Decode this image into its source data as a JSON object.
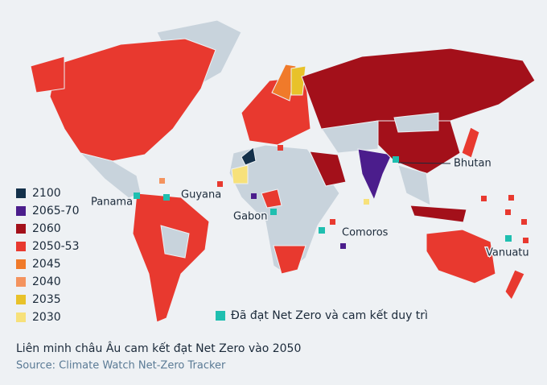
{
  "legend": [
    {
      "label": "2100",
      "color": "#13304a"
    },
    {
      "label": "2065-70",
      "color": "#4b1d8c"
    },
    {
      "label": "2060",
      "color": "#a3101a"
    },
    {
      "label": "2050-53",
      "color": "#e8392f"
    },
    {
      "label": "2045",
      "color": "#f07a2a"
    },
    {
      "label": "2040",
      "color": "#f4935e"
    },
    {
      "label": "2035",
      "color": "#e8c22a"
    },
    {
      "label": "2030",
      "color": "#f7e17a"
    }
  ],
  "achieved": {
    "label": "Đã đạt Net Zero và cam kết duy trì",
    "color": "#1fbfb0"
  },
  "country_labels": [
    "Bhutan",
    "Panama",
    "Guyana",
    "Gabon",
    "Comoros",
    "Vanuatu"
  ],
  "footnote": "Liên minh châu Âu cam kết đạt Net Zero vào 2050",
  "source": "Source: Climate Watch Net-Zero Tracker"
}
